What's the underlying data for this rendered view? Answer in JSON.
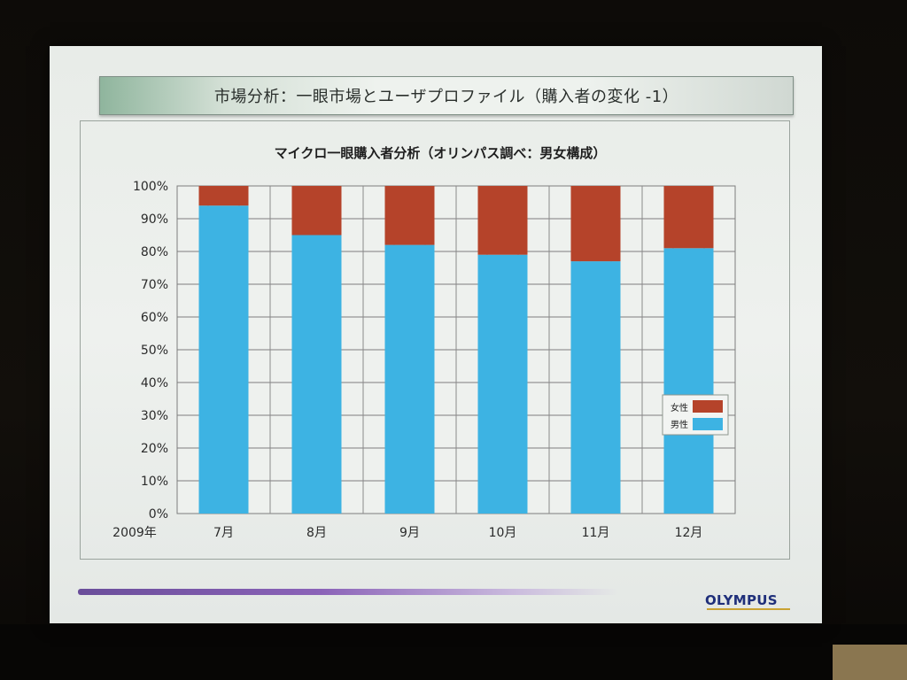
{
  "slide": {
    "title": "市場分析：一眼市場とユーザプロファイル（購入者の変化 -1）",
    "logo_text": "OLYMPUS"
  },
  "chart_data": {
    "type": "bar",
    "stacked": true,
    "title": "マイクロ一眼購入者分析（オリンパス調べ：男女構成）",
    "year_label": "2009年",
    "categories": [
      "7月",
      "8月",
      "9月",
      "10月",
      "11月",
      "12月"
    ],
    "series": [
      {
        "name": "男性",
        "color": "#3db3e3",
        "values": [
          94,
          85,
          82,
          79,
          77,
          81
        ]
      },
      {
        "name": "女性",
        "color": "#b5432a",
        "values": [
          6,
          15,
          18,
          21,
          23,
          19
        ]
      }
    ],
    "yticks": [
      "0%",
      "10%",
      "20%",
      "30%",
      "40%",
      "50%",
      "60%",
      "70%",
      "80%",
      "90%",
      "100%"
    ],
    "ylim": [
      0,
      100
    ],
    "grid": true,
    "legend_position": "right"
  }
}
